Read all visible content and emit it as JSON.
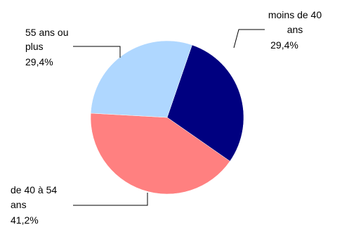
{
  "chart_data": {
    "type": "pie",
    "title": "",
    "categories": [
      "moins de 40 ans",
      "de 40 à 54 ans",
      "55 ans ou plus"
    ],
    "values": [
      29.4,
      41.2,
      29.4
    ],
    "colors": [
      "#000080",
      "#FF8080",
      "#AFD7FF"
    ],
    "slices": [
      {
        "label_lines": [
          "moins de 40",
          "ans"
        ],
        "value_text": "29,4%",
        "color": "#000080"
      },
      {
        "label_lines": [
          "de 40 à 54",
          "ans"
        ],
        "value_text": "41,2%",
        "color": "#FF8080"
      },
      {
        "label_lines": [
          "55 ans ou",
          "plus"
        ],
        "value_text": "29,4%",
        "color": "#AFD7FF"
      }
    ],
    "start_angle_deg": 19,
    "direction": "clockwise",
    "label_placement": "outside-with-leader-lines"
  }
}
